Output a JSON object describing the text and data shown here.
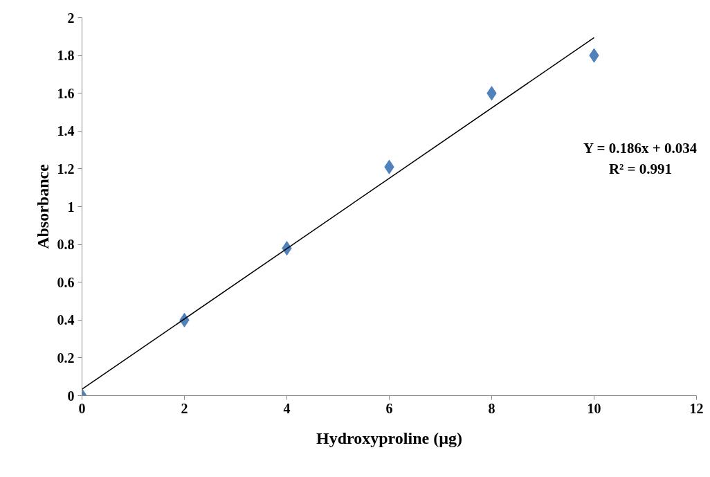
{
  "chart_data": {
    "type": "scatter",
    "xlabel": "Hydroxyproline (µg)",
    "ylabel": "Absorbance",
    "series": [
      {
        "color": "#4f81bd",
        "marker": "diamond",
        "x": [
          0,
          2,
          4,
          6,
          8,
          10
        ],
        "values": [
          0,
          0.4,
          0.78,
          1.21,
          1.6,
          1.8
        ]
      },
      {
        "type": "line",
        "color": "#000000",
        "marker": "none",
        "line_style": "solid",
        "x": [
          0,
          10
        ],
        "values": [
          0.034,
          1.894
        ]
      }
    ],
    "xlim": [
      0,
      12
    ],
    "xticks": [
      0,
      2,
      4,
      6,
      8,
      10,
      12
    ],
    "ylim": [
      0,
      2
    ],
    "yticks": [
      0,
      0.2,
      0.4,
      0.6,
      0.8,
      1,
      1.2,
      1.4,
      1.6,
      1.8,
      2
    ],
    "grid": false,
    "annotations": [
      "Y = 0.186x + 0.034",
      "R² = 0.991"
    ]
  }
}
